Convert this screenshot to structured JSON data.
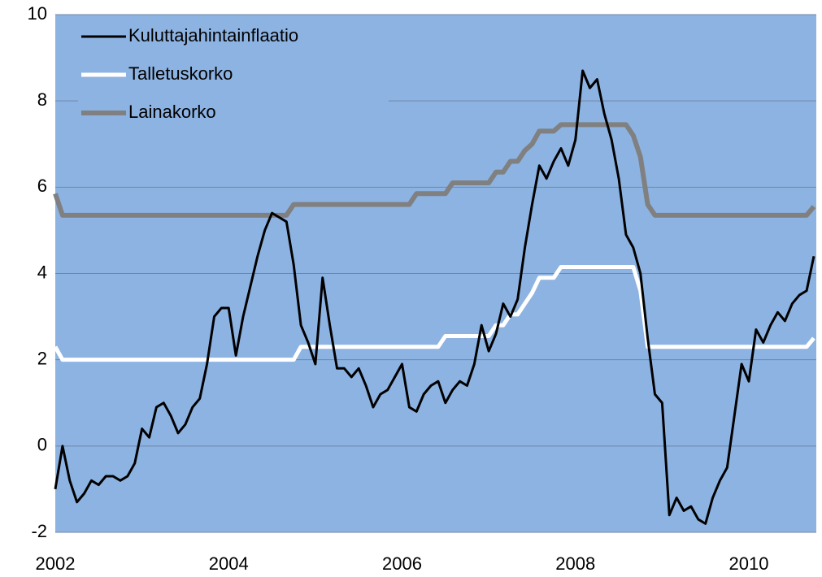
{
  "chart_data": {
    "type": "line",
    "categories": [
      "2002",
      null,
      null,
      null,
      null,
      null,
      null,
      null,
      null,
      null,
      null,
      null,
      null,
      null,
      null,
      null,
      null,
      null,
      null,
      null,
      null,
      null,
      null,
      null,
      "2004",
      null,
      null,
      null,
      null,
      null,
      null,
      null,
      null,
      null,
      null,
      null,
      null,
      null,
      null,
      null,
      null,
      null,
      null,
      null,
      null,
      null,
      null,
      null,
      "2006",
      null,
      null,
      null,
      null,
      null,
      null,
      null,
      null,
      null,
      null,
      null,
      null,
      null,
      null,
      null,
      null,
      null,
      null,
      null,
      null,
      null,
      null,
      null,
      "2008",
      null,
      null,
      null,
      null,
      null,
      null,
      null,
      null,
      null,
      null,
      null,
      null,
      null,
      null,
      null,
      null,
      null,
      null,
      null,
      null,
      null,
      null,
      null,
      "2010",
      null,
      null,
      null,
      null,
      null,
      null,
      null,
      null,
      null
    ],
    "series": [
      {
        "name": "Kuluttajahintainflaatio",
        "color": "#000000",
        "values": [
          -1.0,
          0.0,
          -0.8,
          -1.3,
          -1.1,
          -0.8,
          -0.9,
          -0.7,
          -0.7,
          -0.8,
          -0.7,
          -0.4,
          0.4,
          0.2,
          0.9,
          1.0,
          0.7,
          0.3,
          0.5,
          0.9,
          1.1,
          1.9,
          3.0,
          3.2,
          3.2,
          2.1,
          3.0,
          3.7,
          4.4,
          5.0,
          5.4,
          5.3,
          5.2,
          4.2,
          2.8,
          2.4,
          1.9,
          3.9,
          2.8,
          1.8,
          1.8,
          1.6,
          1.8,
          1.4,
          0.9,
          1.2,
          1.3,
          1.6,
          1.9,
          0.9,
          0.8,
          1.2,
          1.4,
          1.5,
          1.0,
          1.3,
          1.5,
          1.4,
          1.9,
          2.8,
          2.2,
          2.6,
          3.3,
          3.0,
          3.4,
          4.6,
          5.6,
          6.5,
          6.2,
          6.6,
          6.9,
          6.5,
          7.1,
          8.7,
          8.3,
          8.5,
          7.7,
          7.1,
          6.2,
          4.9,
          4.6,
          4.0,
          2.5,
          1.2,
          1.0,
          -1.6,
          -1.2,
          -1.5,
          -1.4,
          -1.7,
          -1.8,
          -1.2,
          -0.8,
          -0.5,
          0.7,
          1.9,
          1.5,
          2.7,
          2.4,
          2.8,
          3.1,
          2.9,
          3.3,
          3.5,
          3.6,
          4.4
        ]
      },
      {
        "name": "Talletuskorko",
        "color": "#ffffff",
        "values": [
          2.3,
          2.0,
          2.0,
          2.0,
          2.0,
          2.0,
          2.0,
          2.0,
          2.0,
          2.0,
          2.0,
          2.0,
          2.0,
          2.0,
          2.0,
          2.0,
          2.0,
          2.0,
          2.0,
          2.0,
          2.0,
          2.0,
          2.0,
          2.0,
          2.0,
          2.0,
          2.0,
          2.0,
          2.0,
          2.0,
          2.0,
          2.0,
          2.0,
          2.0,
          2.3,
          2.3,
          2.3,
          2.3,
          2.3,
          2.3,
          2.3,
          2.3,
          2.3,
          2.3,
          2.3,
          2.3,
          2.3,
          2.3,
          2.3,
          2.3,
          2.3,
          2.3,
          2.3,
          2.3,
          2.55,
          2.55,
          2.55,
          2.55,
          2.55,
          2.55,
          2.55,
          2.8,
          2.8,
          3.05,
          3.05,
          3.3,
          3.55,
          3.9,
          3.9,
          3.9,
          4.15,
          4.15,
          4.15,
          4.15,
          4.15,
          4.15,
          4.15,
          4.15,
          4.15,
          4.15,
          4.15,
          3.6,
          2.3,
          2.3,
          2.3,
          2.3,
          2.3,
          2.3,
          2.3,
          2.3,
          2.3,
          2.3,
          2.3,
          2.3,
          2.3,
          2.3,
          2.3,
          2.3,
          2.3,
          2.3,
          2.3,
          2.3,
          2.3,
          2.3,
          2.3,
          2.5
        ]
      },
      {
        "name": "Lainakorko",
        "color": "#808080",
        "values": [
          5.85,
          5.35,
          5.35,
          5.35,
          5.35,
          5.35,
          5.35,
          5.35,
          5.35,
          5.35,
          5.35,
          5.35,
          5.35,
          5.35,
          5.35,
          5.35,
          5.35,
          5.35,
          5.35,
          5.35,
          5.35,
          5.35,
          5.35,
          5.35,
          5.35,
          5.35,
          5.35,
          5.35,
          5.35,
          5.35,
          5.35,
          5.35,
          5.35,
          5.6,
          5.6,
          5.6,
          5.6,
          5.6,
          5.6,
          5.6,
          5.6,
          5.6,
          5.6,
          5.6,
          5.6,
          5.6,
          5.6,
          5.6,
          5.6,
          5.6,
          5.85,
          5.85,
          5.85,
          5.85,
          5.85,
          6.1,
          6.1,
          6.1,
          6.1,
          6.1,
          6.1,
          6.35,
          6.35,
          6.6,
          6.6,
          6.85,
          7.0,
          7.3,
          7.3,
          7.3,
          7.45,
          7.45,
          7.45,
          7.45,
          7.45,
          7.45,
          7.45,
          7.45,
          7.45,
          7.45,
          7.2,
          6.7,
          5.6,
          5.35,
          5.35,
          5.35,
          5.35,
          5.35,
          5.35,
          5.35,
          5.35,
          5.35,
          5.35,
          5.35,
          5.35,
          5.35,
          5.35,
          5.35,
          5.35,
          5.35,
          5.35,
          5.35,
          5.35,
          5.35,
          5.35,
          5.55
        ]
      }
    ],
    "ylim": [
      -2,
      10
    ],
    "yticks": [
      -2,
      0,
      2,
      4,
      6,
      8,
      10
    ],
    "grid": true,
    "legend": "top-left",
    "plot_color": "#8db3e2"
  }
}
